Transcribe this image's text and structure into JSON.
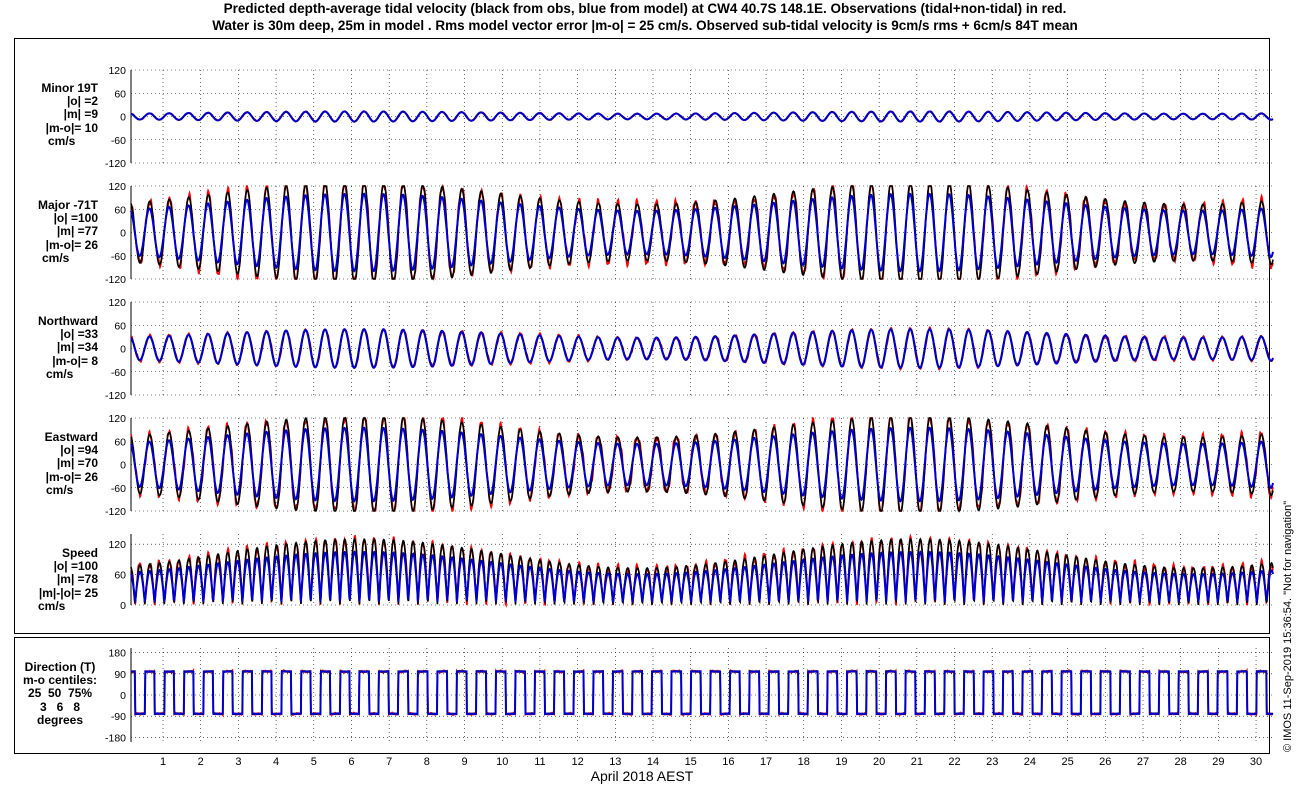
{
  "figure": {
    "title_line1": "Predicted depth-average tidal velocity (black from obs, blue from model) at CW4 40.7S 148.1E. Observations (tidal+non-tidal) in red.",
    "title_line2": "Water is 30m deep, 25m in model . Rms model vector error |m-o| = 25 cm/s. Observed sub-tidal velocity is 9cm/s rms + 6cm/s 84T mean",
    "xlabel": "April 2018 AEST",
    "credit": "© IMOS 11-Sep-2019 15:36:54. \"Not for navigation\""
  },
  "panels": [
    {
      "id": "minor",
      "lines": [
        "Minor 19T",
        "|o| =2",
        "|m| =9",
        "|m-o|= 10",
        "cm/s"
      ]
    },
    {
      "id": "major",
      "lines": [
        "Major -71T",
        "|o| =100",
        "|m| =77",
        "|m-o|= 26",
        "cm/s"
      ]
    },
    {
      "id": "north",
      "lines": [
        "Northward",
        "|o| =33",
        "|m| =34",
        "|m-o|= 8",
        "cm/s"
      ]
    },
    {
      "id": "east",
      "lines": [
        "Eastward",
        "|o| =94",
        "|m| =70",
        "|m-o|= 26",
        "cm/s"
      ]
    },
    {
      "id": "speed",
      "lines": [
        "Speed",
        "|o| =100",
        "|m| =78",
        "|m|-|o|= 25",
        "cm/s"
      ]
    },
    {
      "id": "direction",
      "lines": [
        "Direction (T)",
        "m-o centiles:",
        "25  50  75%",
        "3   6   8",
        "degrees"
      ]
    }
  ],
  "chart_data": {
    "type": "line",
    "xlabel": "April 2018 AEST",
    "x_ticks": [
      "1",
      "2",
      "3",
      "4",
      "5",
      "6",
      "7",
      "8",
      "9",
      "10",
      "11",
      "12",
      "13",
      "14",
      "15",
      "16",
      "17",
      "18",
      "19",
      "20",
      "21",
      "22",
      "23",
      "24",
      "25",
      "26",
      "27",
      "28",
      "29",
      "30"
    ],
    "xlim": [
      0.15,
      30.45
    ],
    "grid": true,
    "series_colors": {
      "observed": "#ff0000",
      "predicted_from_obs": "#000000",
      "model": "#0000cc"
    },
    "subplots": [
      {
        "panel": "Minor 19T",
        "ylim": [
          -120,
          120
        ],
        "y_ticks": [
          -120,
          -60,
          0,
          60,
          120
        ],
        "amplitude_obs": 13,
        "amplitude_model": 13,
        "period_days": 0.5175
      },
      {
        "panel": "Major -71T",
        "ylim": [
          -120,
          120
        ],
        "y_ticks": [
          -120,
          -60,
          0,
          60,
          120
        ],
        "amplitude_obs": 130,
        "amplitude_model": 100,
        "period_days": 0.5175
      },
      {
        "panel": "Northward",
        "ylim": [
          -120,
          120
        ],
        "y_ticks": [
          -120,
          -60,
          0,
          60,
          120
        ],
        "amplitude_obs": 50,
        "amplitude_model": 50,
        "period_days": 0.5175
      },
      {
        "panel": "Eastward",
        "ylim": [
          -120,
          120
        ],
        "y_ticks": [
          -120,
          -60,
          0,
          60,
          120
        ],
        "amplitude_obs": 125,
        "amplitude_model": 95,
        "period_days": 0.5175
      },
      {
        "panel": "Speed",
        "ylim": [
          0,
          140
        ],
        "y_ticks": [
          0,
          60,
          120
        ],
        "peak_obs": 130,
        "peak_model": 105,
        "period_days": 0.2588
      },
      {
        "panel": "Direction (T)",
        "ylim": [
          -200,
          200
        ],
        "y_ticks": [
          -180,
          -90,
          0,
          90,
          180
        ],
        "levels": [
          100,
          -80
        ],
        "period_days": 0.5175
      }
    ]
  }
}
